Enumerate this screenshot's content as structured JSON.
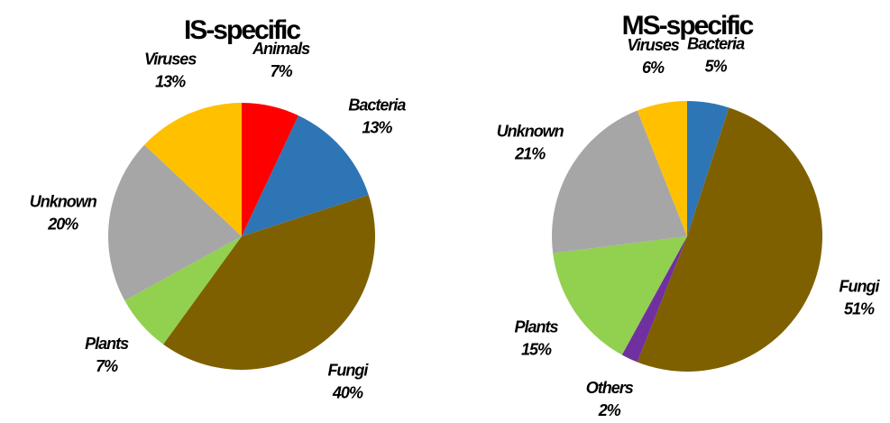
{
  "chart_data": [
    {
      "type": "pie",
      "title": "IS-specific",
      "categories": [
        "Animals",
        "Bacteria",
        "Fungi",
        "Plants",
        "Unknown",
        "Viruses"
      ],
      "values": [
        7,
        13,
        40,
        7,
        20,
        13
      ],
      "value_labels": [
        "7%",
        "13%",
        "40%",
        "7%",
        "20%",
        "13%"
      ],
      "colors": [
        "#ff0000",
        "#2e75b6",
        "#7f6000",
        "#92d050",
        "#a6a6a6",
        "#ffc000"
      ]
    },
    {
      "type": "pie",
      "title": "MS-specific",
      "categories": [
        "Bacteria",
        "Fungi",
        "Others",
        "Plants",
        "Unknown",
        "Viruses"
      ],
      "values": [
        5,
        51,
        2,
        15,
        21,
        6
      ],
      "value_labels": [
        "5%",
        "51%",
        "2%",
        "15%",
        "21%",
        "6%"
      ],
      "colors": [
        "#2e75b6",
        "#7f6000",
        "#7030a0",
        "#92d050",
        "#a6a6a6",
        "#ffc000"
      ]
    }
  ]
}
